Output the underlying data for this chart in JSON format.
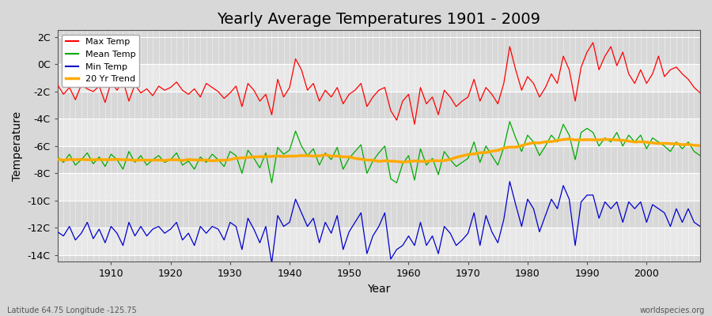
{
  "title": "Yearly Average Temperatures 1901 - 2009",
  "xlabel": "Year",
  "ylabel": "Temperature",
  "footnote_left": "Latitude 64.75 Longitude -125.75",
  "footnote_right": "worldspecies.org",
  "years": [
    1901,
    1902,
    1903,
    1904,
    1905,
    1906,
    1907,
    1908,
    1909,
    1910,
    1911,
    1912,
    1913,
    1914,
    1915,
    1916,
    1917,
    1918,
    1919,
    1920,
    1921,
    1922,
    1923,
    1924,
    1925,
    1926,
    1927,
    1928,
    1929,
    1930,
    1931,
    1932,
    1933,
    1934,
    1935,
    1936,
    1937,
    1938,
    1939,
    1940,
    1941,
    1942,
    1943,
    1944,
    1945,
    1946,
    1947,
    1948,
    1949,
    1950,
    1951,
    1952,
    1953,
    1954,
    1955,
    1956,
    1957,
    1958,
    1959,
    1960,
    1961,
    1962,
    1963,
    1964,
    1965,
    1966,
    1967,
    1968,
    1969,
    1970,
    1971,
    1972,
    1973,
    1974,
    1975,
    1976,
    1977,
    1978,
    1979,
    1980,
    1981,
    1982,
    1983,
    1984,
    1985,
    1986,
    1987,
    1988,
    1989,
    1990,
    1991,
    1992,
    1993,
    1994,
    1995,
    1996,
    1997,
    1998,
    1999,
    2000,
    2001,
    2002,
    2003,
    2004,
    2005,
    2006,
    2007,
    2008,
    2009
  ],
  "max_temp": [
    -1.5,
    -2.2,
    -1.7,
    -2.6,
    -1.5,
    -1.8,
    -2.0,
    -1.6,
    -2.8,
    -1.3,
    -1.9,
    -1.2,
    -2.7,
    -1.5,
    -2.1,
    -1.8,
    -2.3,
    -1.6,
    -1.9,
    -1.7,
    -1.3,
    -1.9,
    -2.2,
    -1.8,
    -2.4,
    -1.4,
    -1.7,
    -2.0,
    -2.5,
    -2.1,
    -1.6,
    -3.1,
    -1.4,
    -1.9,
    -2.7,
    -2.2,
    -3.7,
    -1.1,
    -2.4,
    -1.7,
    0.4,
    -0.4,
    -1.9,
    -1.4,
    -2.7,
    -1.9,
    -2.4,
    -1.7,
    -2.9,
    -2.2,
    -1.9,
    -1.4,
    -3.1,
    -2.4,
    -1.9,
    -1.7,
    -3.4,
    -4.1,
    -2.7,
    -2.2,
    -4.4,
    -1.7,
    -2.9,
    -2.4,
    -3.7,
    -1.9,
    -2.4,
    -3.1,
    -2.7,
    -2.4,
    -1.1,
    -2.7,
    -1.7,
    -2.2,
    -2.9,
    -1.4,
    1.3,
    -0.4,
    -1.9,
    -0.9,
    -1.4,
    -2.4,
    -1.7,
    -0.7,
    -1.4,
    0.6,
    -0.4,
    -2.7,
    -0.2,
    0.9,
    1.6,
    -0.4,
    0.6,
    1.3,
    -0.1,
    0.9,
    -0.7,
    -1.4,
    -0.4,
    -1.4,
    -0.7,
    0.6,
    -0.9,
    -0.4,
    -0.2,
    -0.7,
    -1.1,
    -1.7,
    -2.1
  ],
  "mean_temp": [
    -6.8,
    -7.2,
    -6.6,
    -7.4,
    -7.0,
    -6.5,
    -7.3,
    -6.8,
    -7.5,
    -6.6,
    -7.0,
    -7.7,
    -6.4,
    -7.2,
    -6.7,
    -7.4,
    -7.0,
    -6.7,
    -7.2,
    -7.0,
    -6.5,
    -7.4,
    -7.1,
    -7.7,
    -6.8,
    -7.2,
    -6.6,
    -7.0,
    -7.5,
    -6.4,
    -6.7,
    -8.0,
    -6.3,
    -6.9,
    -7.6,
    -6.5,
    -8.7,
    -6.1,
    -6.6,
    -6.3,
    -4.9,
    -6.0,
    -6.7,
    -6.2,
    -7.4,
    -6.5,
    -7.0,
    -6.1,
    -7.7,
    -6.9,
    -6.4,
    -5.9,
    -8.0,
    -7.1,
    -6.5,
    -6.0,
    -8.4,
    -8.7,
    -7.3,
    -6.7,
    -8.5,
    -6.2,
    -7.4,
    -6.9,
    -8.1,
    -6.4,
    -7.0,
    -7.5,
    -7.2,
    -6.9,
    -5.7,
    -7.2,
    -6.0,
    -6.7,
    -7.4,
    -6.1,
    -4.2,
    -5.4,
    -6.4,
    -5.2,
    -5.7,
    -6.7,
    -6.0,
    -5.2,
    -5.7,
    -4.4,
    -5.2,
    -7.0,
    -5.0,
    -4.7,
    -5.0,
    -6.0,
    -5.4,
    -5.7,
    -5.0,
    -6.0,
    -5.2,
    -5.7,
    -5.2,
    -6.2,
    -5.4,
    -5.7,
    -6.0,
    -6.4,
    -5.7,
    -6.2,
    -5.7,
    -6.4,
    -6.7
  ],
  "min_temp": [
    -12.3,
    -12.6,
    -11.9,
    -12.9,
    -12.4,
    -11.6,
    -12.8,
    -12.1,
    -13.1,
    -11.9,
    -12.4,
    -13.3,
    -11.6,
    -12.6,
    -11.9,
    -12.6,
    -12.1,
    -11.9,
    -12.4,
    -12.1,
    -11.6,
    -12.9,
    -12.4,
    -13.3,
    -11.9,
    -12.4,
    -11.9,
    -12.1,
    -12.9,
    -11.6,
    -11.9,
    -13.6,
    -11.3,
    -12.1,
    -13.1,
    -11.9,
    -14.6,
    -11.1,
    -11.9,
    -11.6,
    -9.9,
    -10.9,
    -11.9,
    -11.3,
    -13.1,
    -11.6,
    -12.4,
    -11.1,
    -13.6,
    -12.3,
    -11.6,
    -10.9,
    -13.9,
    -12.6,
    -11.9,
    -10.9,
    -14.3,
    -13.6,
    -13.3,
    -12.6,
    -13.3,
    -11.6,
    -13.3,
    -12.6,
    -13.9,
    -11.9,
    -12.4,
    -13.3,
    -12.9,
    -12.4,
    -10.9,
    -13.3,
    -11.1,
    -12.3,
    -13.1,
    -11.4,
    -8.6,
    -10.3,
    -11.9,
    -9.9,
    -10.6,
    -12.3,
    -11.1,
    -9.9,
    -10.6,
    -8.9,
    -9.9,
    -13.3,
    -10.1,
    -9.6,
    -9.6,
    -11.3,
    -10.1,
    -10.6,
    -10.1,
    -11.6,
    -10.1,
    -10.6,
    -10.1,
    -11.6,
    -10.3,
    -10.6,
    -10.9,
    -11.9,
    -10.6,
    -11.6,
    -10.6,
    -11.6,
    -11.9
  ],
  "ylim_min": -14.5,
  "ylim_max": 2.5,
  "yticks": [
    -14,
    -12,
    -10,
    -8,
    -6,
    -4,
    -2,
    0,
    2
  ],
  "ytick_labels": [
    "-14C",
    "-12C",
    "-10C",
    "-8C",
    "-6C",
    "-4C",
    "-2C",
    "0C",
    "2C"
  ],
  "xticks": [
    1910,
    1920,
    1930,
    1940,
    1950,
    1960,
    1970,
    1980,
    1990,
    2000
  ],
  "bg_color": "#d8d8d8",
  "plot_bg_color": "#d8d8d8",
  "hband_color": "#e8e8e8",
  "max_color": "#ff0000",
  "mean_color": "#00aa00",
  "min_color": "#0000cc",
  "trend_color": "#ffaa00",
  "grid_color": "#ffffff",
  "title_fontsize": 14,
  "axis_fontsize": 9,
  "legend_fontsize": 8,
  "legend_labels": [
    "Max Temp",
    "Mean Temp",
    "Min Temp",
    "20 Yr Trend"
  ]
}
